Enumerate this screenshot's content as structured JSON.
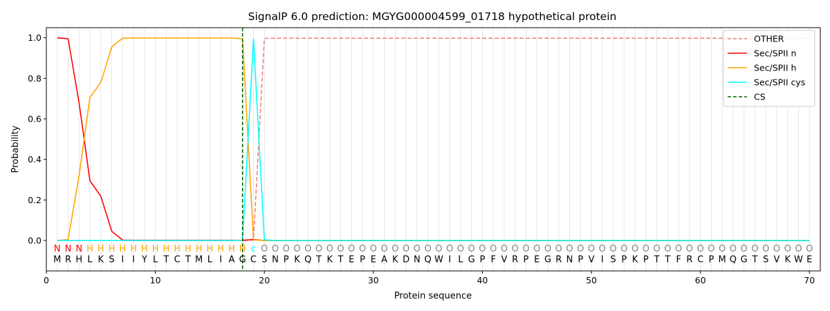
{
  "chart_data": {
    "type": "line",
    "title": "SignalP 6.0 prediction: MGYG000004599_01718 hypothetical protein",
    "xlabel": "Protein sequence",
    "ylabel": "Probability",
    "xlim": [
      0,
      71
    ],
    "ylim": [
      -0.15,
      1.05
    ],
    "x_ticks": [
      0,
      10,
      20,
      30,
      40,
      50,
      60,
      70
    ],
    "y_ticks": [
      0.0,
      0.2,
      0.4,
      0.6,
      0.8,
      1.0
    ],
    "x_tick_labels": [
      "0",
      "10",
      "20",
      "30",
      "40",
      "50",
      "60",
      "70"
    ],
    "y_tick_labels": [
      "0.0",
      "0.2",
      "0.4",
      "0.6",
      "0.8",
      "1.0"
    ],
    "grid": "vertical at each residue",
    "legend_position": "top-right",
    "sequence": [
      "M",
      "R",
      "H",
      "L",
      "K",
      "S",
      "I",
      "I",
      "Y",
      "L",
      "T",
      "C",
      "T",
      "M",
      "L",
      "I",
      "A",
      "G",
      "C",
      "S",
      "N",
      "P",
      "K",
      "Q",
      "T",
      "K",
      "T",
      "E",
      "P",
      "E",
      "A",
      "K",
      "D",
      "N",
      "Q",
      "W",
      "I",
      "L",
      "G",
      "P",
      "F",
      "V",
      "R",
      "P",
      "E",
      "G",
      "R",
      "N",
      "P",
      "V",
      "I",
      "S",
      "P",
      "K",
      "P",
      "T",
      "T",
      "F",
      "R",
      "C",
      "P",
      "M",
      "Q",
      "G",
      "T",
      "S",
      "V",
      "K",
      "W",
      "E"
    ],
    "labels": [
      "N",
      "N",
      "N",
      "H",
      "H",
      "H",
      "H",
      "H",
      "H",
      "H",
      "H",
      "H",
      "H",
      "H",
      "H",
      "H",
      "H",
      "H",
      "c",
      "O",
      "O",
      "O",
      "O",
      "O",
      "O",
      "O",
      "O",
      "O",
      "O",
      "O",
      "O",
      "O",
      "O",
      "O",
      "O",
      "O",
      "O",
      "O",
      "O",
      "O",
      "O",
      "O",
      "O",
      "O",
      "O",
      "O",
      "O",
      "O",
      "O",
      "O",
      "O",
      "O",
      "O",
      "O",
      "O",
      "O",
      "O",
      "O",
      "O",
      "O",
      "O",
      "O",
      "O",
      "O",
      "O",
      "O",
      "O",
      "O",
      "O",
      "O"
    ],
    "label_colors": {
      "N": "#ff0000",
      "H": "#ffa500",
      "c": "#00ffff",
      "O": "#808080"
    },
    "series": [
      {
        "name": "OTHER",
        "color": "#f08080",
        "dash": "dashed",
        "values": [
          0,
          0,
          0,
          0,
          0,
          0,
          0,
          0,
          0,
          0,
          0,
          0,
          0,
          0,
          0,
          0,
          0,
          0,
          0.002,
          0.997,
          0.998,
          0.998,
          0.998,
          0.998,
          0.998,
          0.998,
          0.998,
          0.998,
          0.998,
          0.998,
          0.998,
          0.998,
          0.998,
          0.998,
          0.998,
          0.998,
          0.998,
          0.998,
          0.998,
          0.998,
          0.998,
          0.998,
          0.998,
          0.998,
          0.998,
          0.998,
          0.998,
          0.998,
          0.998,
          0.998,
          0.998,
          0.998,
          0.998,
          0.998,
          0.998,
          0.998,
          0.998,
          0.998,
          0.998,
          0.998,
          0.998,
          0.998,
          0.998,
          0.998,
          0.998,
          0.998,
          0.998,
          0.998,
          0.998,
          0.998
        ]
      },
      {
        "name": "Sec/SPII n",
        "color": "#ff0000",
        "dash": "solid",
        "values": [
          1.0,
          0.995,
          0.68,
          0.295,
          0.218,
          0.045,
          0.002,
          0.001,
          0.001,
          0.001,
          0.001,
          0.001,
          0.001,
          0.001,
          0.001,
          0.001,
          0.001,
          0.001,
          0.005,
          0,
          0,
          0,
          0,
          0,
          0,
          0,
          0,
          0,
          0,
          0,
          0,
          0,
          0,
          0,
          0,
          0,
          0,
          0,
          0,
          0,
          0,
          0,
          0,
          0,
          0,
          0,
          0,
          0,
          0,
          0,
          0,
          0,
          0,
          0,
          0,
          0,
          0,
          0,
          0,
          0,
          0,
          0,
          0,
          0,
          0,
          0,
          0,
          0,
          0,
          0
        ]
      },
      {
        "name": "Sec/SPII h",
        "color": "#ffa500",
        "dash": "solid",
        "values": [
          0,
          0.005,
          0.32,
          0.705,
          0.78,
          0.955,
          0.998,
          0.999,
          0.999,
          0.999,
          0.999,
          0.999,
          0.999,
          0.999,
          0.999,
          0.999,
          0.999,
          0.995,
          0.003,
          0,
          0,
          0,
          0,
          0,
          0,
          0,
          0,
          0,
          0,
          0,
          0,
          0,
          0,
          0,
          0,
          0,
          0,
          0,
          0,
          0,
          0,
          0,
          0,
          0,
          0,
          0,
          0,
          0,
          0,
          0,
          0,
          0,
          0,
          0,
          0,
          0,
          0,
          0,
          0,
          0,
          0,
          0,
          0,
          0,
          0,
          0,
          0,
          0,
          0,
          0
        ]
      },
      {
        "name": "Sec/SPII cys",
        "color": "#00ffff",
        "dash": "solid",
        "values": [
          0,
          0,
          0,
          0,
          0,
          0,
          0,
          0,
          0,
          0,
          0,
          0,
          0,
          0,
          0,
          0,
          0,
          0.001,
          0.993,
          0.003,
          0,
          0,
          0,
          0,
          0,
          0,
          0,
          0,
          0,
          0,
          0,
          0,
          0,
          0,
          0,
          0,
          0,
          0,
          0,
          0,
          0,
          0,
          0,
          0,
          0,
          0,
          0,
          0,
          0,
          0,
          0,
          0,
          0,
          0,
          0,
          0,
          0,
          0,
          0,
          0,
          0,
          0,
          0,
          0,
          0,
          0,
          0,
          0,
          0,
          0
        ]
      }
    ],
    "cs": {
      "name": "CS",
      "x": 18,
      "color": "#006400"
    }
  }
}
